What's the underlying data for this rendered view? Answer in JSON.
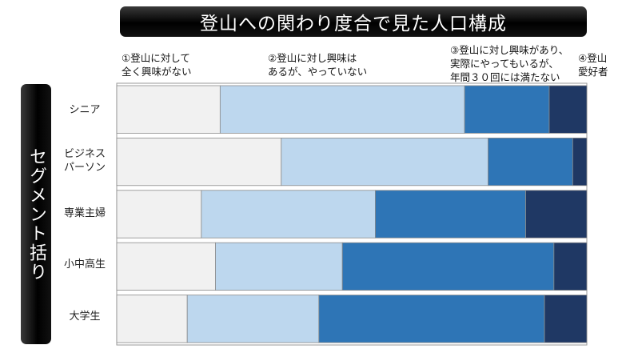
{
  "title": "登山への関わり度合で見た人口構成",
  "side_label": "セグメント括り",
  "colors": [
    "#f1f1f1",
    "#bdd7ee",
    "#2e75b6",
    "#1f3864"
  ],
  "chart_data": {
    "type": "bar",
    "orientation": "horizontal",
    "stacked": true,
    "percent": true,
    "categories": [
      "シニア",
      "ビジネス\nパーソン",
      "専業主婦",
      "小中高生",
      "大学生"
    ],
    "series": [
      {
        "name": "①登山に対して\n全く興味がない",
        "values": [
          22,
          35,
          18,
          21,
          15
        ]
      },
      {
        "name": "②登山に対し興味は\nあるが、やっていない",
        "values": [
          52,
          44,
          37,
          27,
          28
        ]
      },
      {
        "name": "③登山に対し興味があり、\n実際にやってもいるが、\n年間３０回には満たない",
        "values": [
          18,
          18,
          32,
          45,
          48
        ]
      },
      {
        "name": "④登山\n愛好者",
        "values": [
          8,
          3,
          13,
          7,
          9
        ]
      }
    ],
    "legend_position": "top",
    "grid": false
  }
}
